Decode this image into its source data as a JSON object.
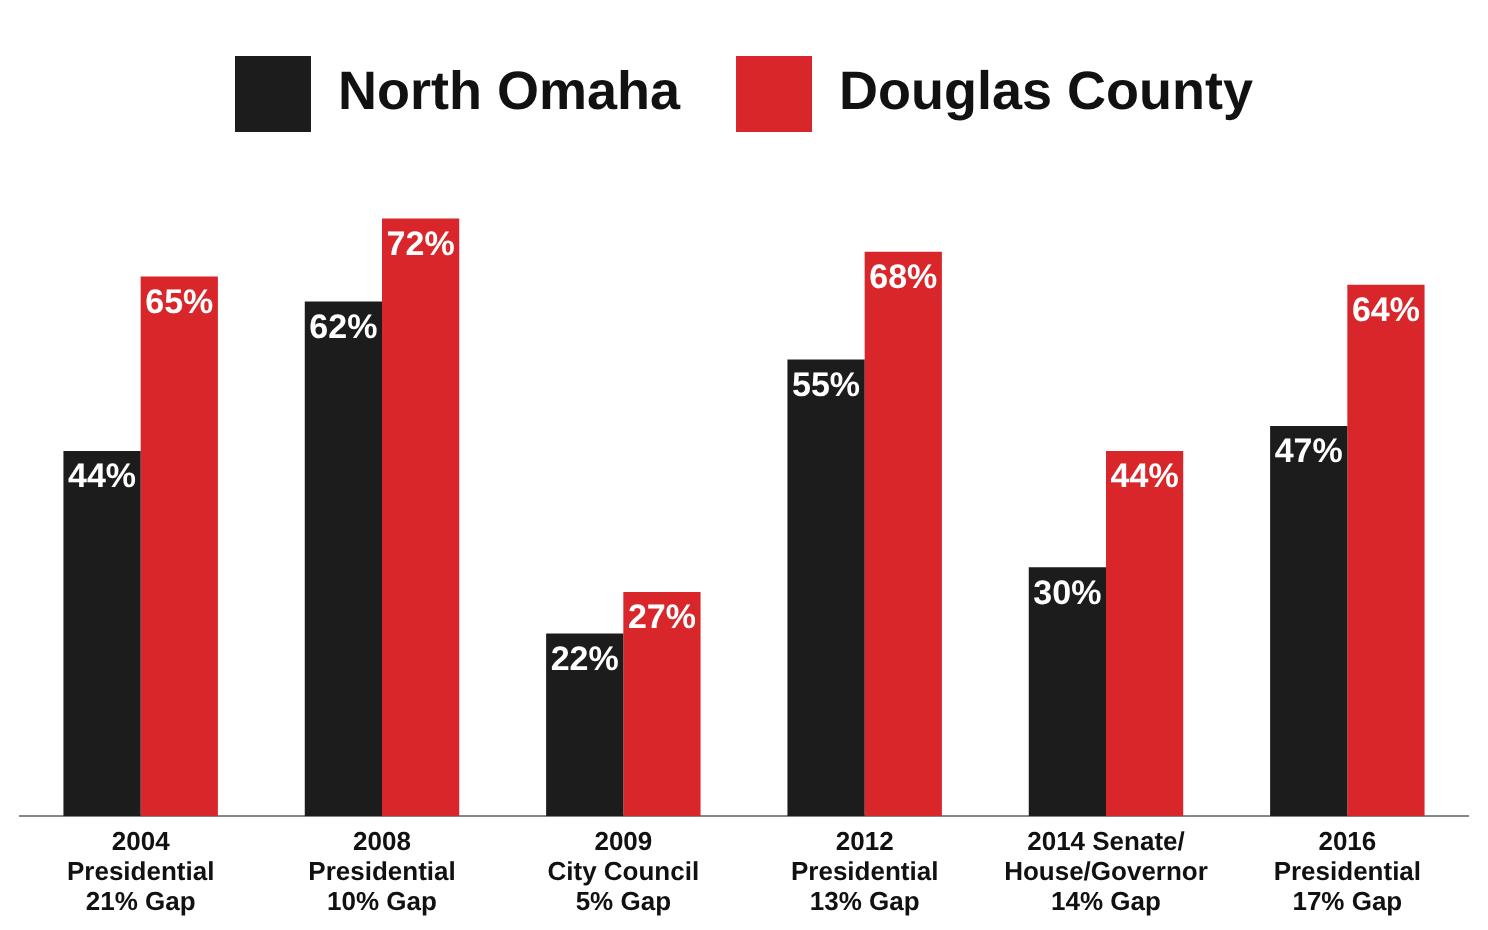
{
  "chart_data": {
    "type": "bar",
    "categories": [
      "2004\nPresidential\n21% Gap",
      "2008\nPresidential\n10% Gap",
      "2009\nCity Council\n5% Gap",
      "2012\nPresidential\n13% Gap",
      "2014 Senate/\nHouse/Governor\n14% Gap",
      "2016\nPresidential\n17% Gap"
    ],
    "series": [
      {
        "name": "North Omaha",
        "color": "#1c1c1c",
        "values": [
          44,
          62,
          22,
          55,
          30,
          47
        ],
        "value_labels": [
          "44%",
          "62%",
          "22%",
          "55%",
          "30%",
          "47%"
        ]
      },
      {
        "name": "Douglas County",
        "color": "#d9262b",
        "values": [
          65,
          72,
          27,
          68,
          44,
          64
        ],
        "value_labels": [
          "65%",
          "72%",
          "27%",
          "68%",
          "44%",
          "64%"
        ]
      }
    ],
    "legend": "top",
    "grid": false,
    "tick_labels": "x"
  }
}
